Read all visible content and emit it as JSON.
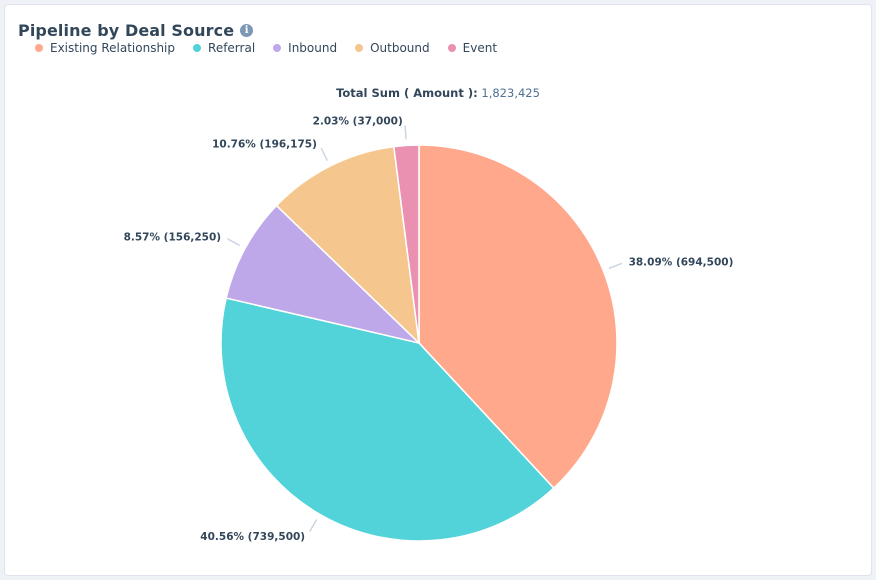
{
  "header": {
    "title": "Pipeline by Deal Source",
    "info_icon": "info-icon"
  },
  "total": {
    "label": "Total Sum ( Amount ):",
    "value": "1,823,425"
  },
  "colors": {
    "Existing Relationship": "#ffa88c",
    "Referral": "#51d3d9",
    "Inbound": "#bea8ea",
    "Outbound": "#f5c78e",
    "Event": "#ea90b1"
  },
  "chart_data": {
    "type": "pie",
    "title": "Pipeline by Deal Source",
    "legend_position": "top-left",
    "categories": [
      "Existing Relationship",
      "Referral",
      "Inbound",
      "Outbound",
      "Event"
    ],
    "values": [
      694500,
      739500,
      156250,
      196175,
      37000
    ],
    "labels": [
      "38.09% (694,500)",
      "40.56% (739,500)",
      "8.57% (156,250)",
      "10.76% (196,175)",
      "2.03% (37,000)"
    ]
  }
}
